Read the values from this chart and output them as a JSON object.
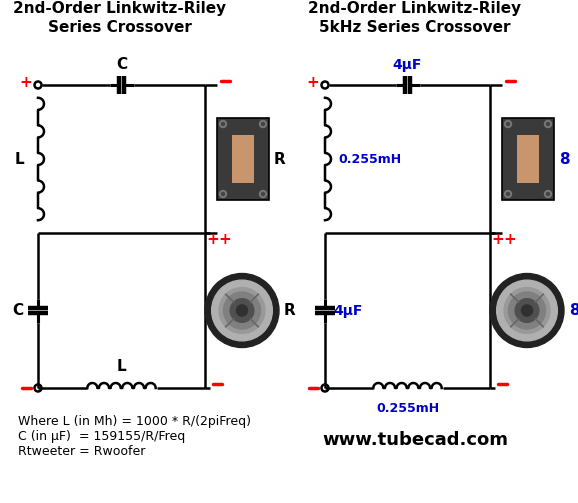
{
  "title_left": "2nd-Order Linkwitz-Riley\nSeries Crossover",
  "title_right": "2nd-Order Linkwitz-Riley\n5kHz Series Crossover",
  "formula1": "Where L (in Mh) = 1000 * R/(2piFreq)",
  "formula2": "C (in μF)  = 159155/R/Freq",
  "formula3": "Rtweeter = Rwoofer",
  "website": "www.tubecad.com",
  "label_C_top_left": "C",
  "label_L_left": "L",
  "label_C_bot_left": "C",
  "label_L_bot_left": "L",
  "label_R_tweeter_left": "R",
  "label_R_woofer_left": "R",
  "label_4uF_top": "4μF",
  "label_255mH_left": "0.255mH",
  "label_4uF_bot": "4μF",
  "label_255mH_bot": "0.255mH",
  "label_8_tweeter": "8",
  "label_8_woofer": "8",
  "bg_color": "#ffffff",
  "line_color": "#000000",
  "red_color": "#ff0000",
  "blue_color": "#0000cd",
  "tweeter_body_color": "#3a3a3a",
  "tweeter_cone_color": "#c8956c",
  "woofer_outer_color": "#222222",
  "woofer_ring1_color": "#b0b0b0",
  "woofer_ring2_color": "#808080",
  "woofer_ring3_color": "#505050",
  "woofer_center_color": "#303030"
}
